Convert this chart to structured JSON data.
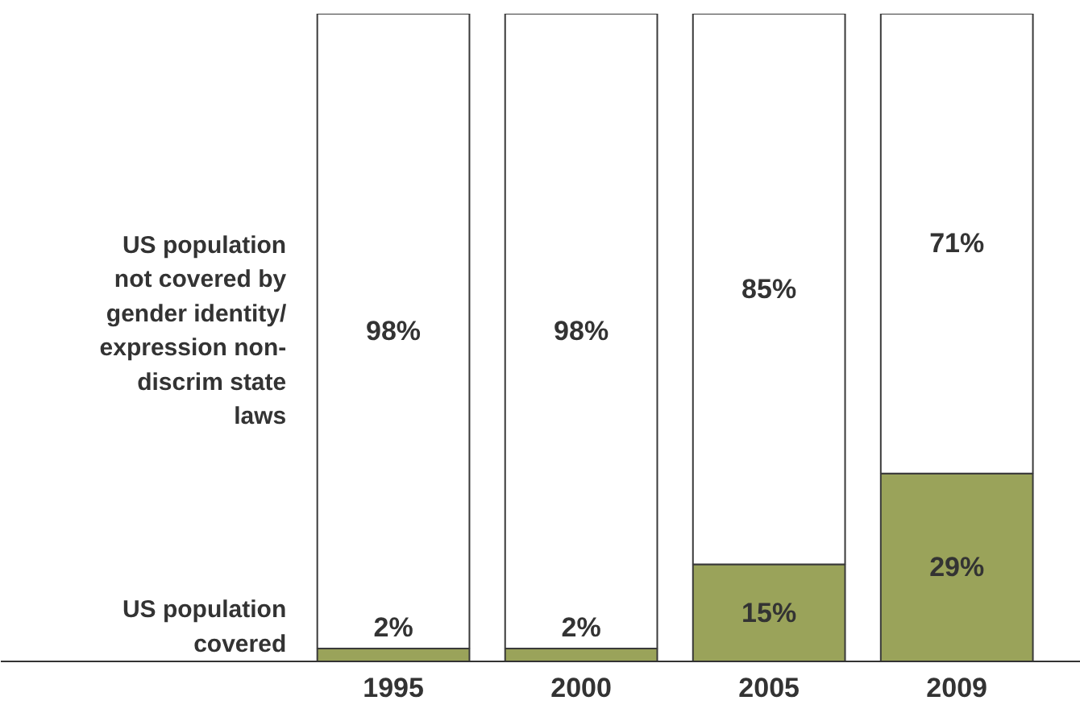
{
  "chart_data": {
    "type": "bar",
    "stacked": true,
    "categories": [
      "1995",
      "2000",
      "2005",
      "2009"
    ],
    "ylim": [
      0,
      100
    ],
    "grid": false,
    "series": [
      {
        "name": "US population covered",
        "color": "#9aa35a",
        "values": [
          2,
          2,
          15,
          29
        ],
        "value_labels": [
          "2%",
          "2%",
          "15%",
          "29%"
        ]
      },
      {
        "name": "US population not covered by gender identity/expression non-discrim state laws",
        "color": "#ffffff",
        "values": [
          98,
          98,
          85,
          71
        ],
        "value_labels": [
          "98%",
          "98%",
          "85%",
          "71%"
        ]
      }
    ]
  }
}
